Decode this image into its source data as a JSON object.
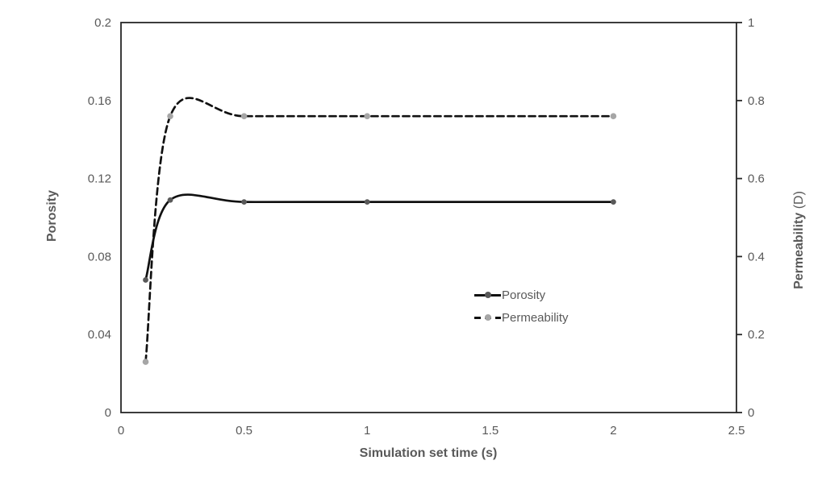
{
  "chart_data": {
    "type": "line",
    "title": "",
    "xlabel": "Simulation set time (s)",
    "ylabel_left": "Porosity",
    "ylabel_right": {
      "name": "Permeability",
      "unit": " (D)"
    },
    "x_axis": {
      "min": 0,
      "max": 2.5,
      "ticks": [
        {
          "v": 0,
          "label": "0"
        },
        {
          "v": 0.5,
          "label": "0.5"
        },
        {
          "v": 1,
          "label": "1"
        },
        {
          "v": 1.5,
          "label": "1.5"
        },
        {
          "v": 2,
          "label": "2"
        },
        {
          "v": 2.5,
          "label": "2.5"
        }
      ]
    },
    "y_axis_left": {
      "min": 0,
      "max": 0.2,
      "ticks": [
        {
          "v": 0,
          "label": "0"
        },
        {
          "v": 0.04,
          "label": "0.04"
        },
        {
          "v": 0.08,
          "label": "0.08"
        },
        {
          "v": 0.12,
          "label": "0.12"
        },
        {
          "v": 0.16,
          "label": "0.16"
        },
        {
          "v": 0.2,
          "label": "0.2"
        }
      ]
    },
    "y_axis_right": {
      "min": 0,
      "max": 1,
      "ticks": [
        {
          "v": 0,
          "label": "0"
        },
        {
          "v": 0.2,
          "label": "0.2"
        },
        {
          "v": 0.4,
          "label": "0.4"
        },
        {
          "v": 0.6,
          "label": "0.6"
        },
        {
          "v": 0.8,
          "label": "0.8"
        },
        {
          "v": 1,
          "label": "1"
        }
      ]
    },
    "x": [
      0.1,
      0.2,
      0.5,
      1,
      2
    ],
    "series": [
      {
        "name": "Porosity",
        "axis": "left",
        "values": [
          0.068,
          0.109,
          0.108,
          0.108,
          0.108
        ],
        "line_style": "solid",
        "line_color": "#111111",
        "marker_color": "#595959",
        "marker_radius": 3.4
      },
      {
        "name": "Permeability",
        "axis": "right",
        "values": [
          0.13,
          0.76,
          0.76,
          0.76,
          0.76
        ],
        "line_style": "dashed",
        "line_color": "#111111",
        "marker_color": "#a6a6a6",
        "marker_radius": 3.8
      }
    ],
    "legend": {
      "position": "center-right",
      "entries": [
        {
          "label": "Porosity",
          "line": "solid",
          "marker_color": "#595959"
        },
        {
          "label": "Permeability",
          "line": "dashed",
          "marker_color": "#a6a6a6"
        }
      ]
    },
    "grid": false,
    "colors": {
      "frame": "#262626",
      "tick_label": "#595959",
      "axis_title": "#595959",
      "background": "#ffffff"
    }
  }
}
